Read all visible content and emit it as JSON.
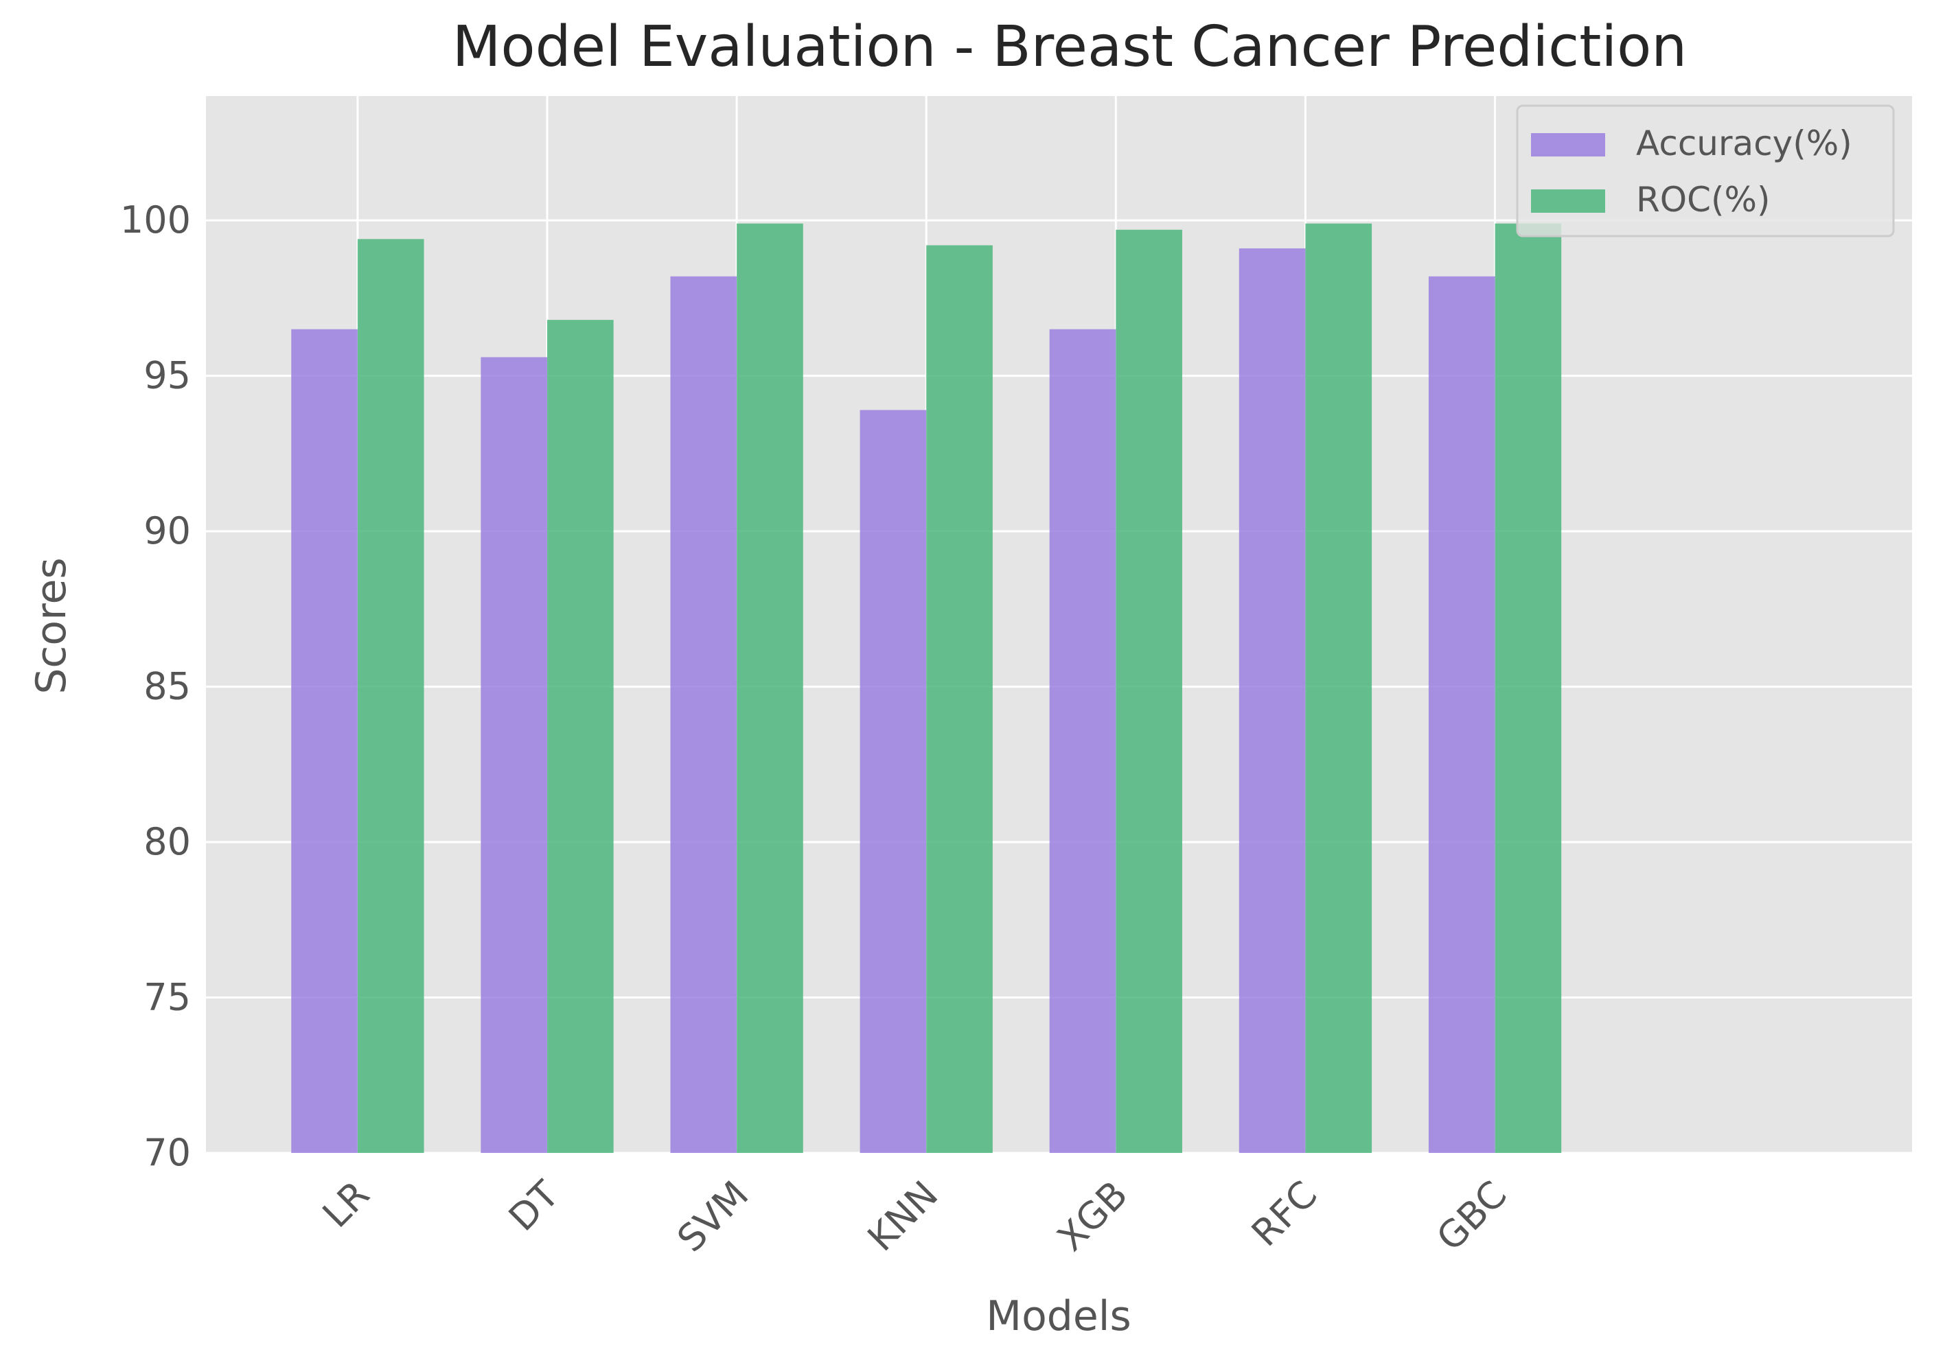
{
  "chart_data": {
    "type": "bar",
    "title": "Model Evaluation - Breast Cancer Prediction",
    "xlabel": "Models",
    "ylabel": "Scores",
    "categories": [
      "LR",
      "DT",
      "SVM",
      "KNN",
      "XGB",
      "RFC",
      "GBC"
    ],
    "series": [
      {
        "name": "Accuracy(%)",
        "color": "#9b7fdf",
        "values": [
          96.5,
          95.6,
          98.2,
          93.9,
          96.5,
          99.1,
          98.2
        ]
      },
      {
        "name": "ROC(%)",
        "color": "#4db67c",
        "values": [
          99.4,
          96.8,
          99.9,
          99.2,
          99.7,
          99.9,
          99.9
        ]
      }
    ],
    "ylim": [
      70,
      104
    ],
    "yticks": [
      70,
      75,
      80,
      85,
      90,
      95,
      100
    ],
    "grid": true,
    "legend_position": "top-right",
    "background_color": "#e5e5e5"
  }
}
